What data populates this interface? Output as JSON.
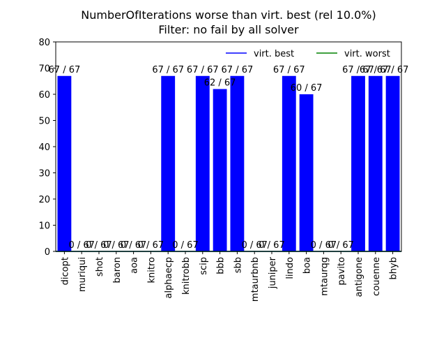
{
  "chart_data": {
    "type": "bar",
    "title_line1": "NumberOfIterations worse than virt. best (rel 10.0%)",
    "title_line2": "Filter: no fail by all solver",
    "xlabel": "",
    "ylabel": "",
    "ylim": [
      0,
      80
    ],
    "yticks": [
      0,
      10,
      20,
      30,
      40,
      50,
      60,
      70,
      80
    ],
    "grid": false,
    "legend_position": "top-right",
    "legend": [
      {
        "label": "virt. best",
        "color": "#0000ff"
      },
      {
        "label": "virt. worst",
        "color": "#008000"
      }
    ],
    "bar_color": "#0000ff",
    "categories": [
      "dicopt",
      "muriqui",
      "shot",
      "baron",
      "aoa",
      "knitro",
      "alphaecp",
      "knitrobb",
      "scip",
      "bbb",
      "sbb",
      "mtaurbnb",
      "juniper",
      "lindo",
      "boa",
      "mtaurqg",
      "pavito",
      "antigone",
      "couenne",
      "bhyb"
    ],
    "values": [
      67,
      0,
      0,
      0,
      0,
      0,
      67,
      0,
      67,
      62,
      67,
      0,
      0,
      67,
      60,
      0,
      0,
      67,
      67,
      67
    ],
    "labels": [
      "67 / 67",
      "0 / 67",
      "0 / 67",
      "0 / 67",
      "0 / 67",
      "0 / 67",
      "67 / 67",
      "0 / 67",
      "67 / 67",
      "62 / 67",
      "67 / 67",
      "0 / 67",
      "0 / 67",
      "67 / 67",
      "60 / 67",
      "0 / 67",
      "0 / 67",
      "67 / 67",
      "67 / 67",
      "67 / 67"
    ],
    "virt_best_line": 0,
    "virt_worst_line": 0
  }
}
